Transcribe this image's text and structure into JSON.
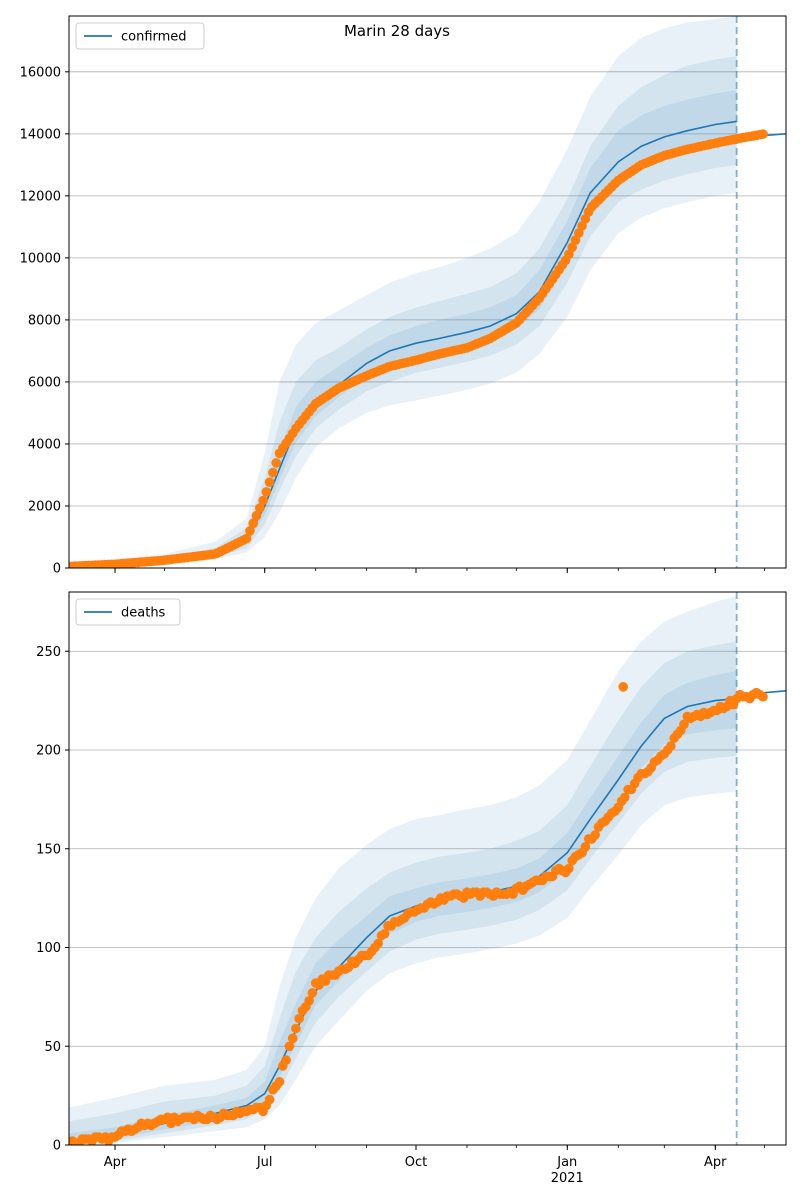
{
  "figure": {
    "title": "Marin 28 days"
  },
  "colors": {
    "model": "#1f77b4",
    "observed": "#ff7f0e",
    "grid": "#b0b0b0",
    "band": "#1f77b4"
  },
  "x_axis": {
    "ticks": [
      {
        "date": "2020-04-01",
        "label": "Apr"
      },
      {
        "date": "2020-07-01",
        "label": "Jul"
      },
      {
        "date": "2020-10-01",
        "label": "Oct"
      },
      {
        "date": "2021-01-01",
        "label": "Jan",
        "sublabel": "2021"
      },
      {
        "date": "2021-04-01",
        "label": "Apr"
      }
    ]
  },
  "chart_data": [
    {
      "type": "line",
      "legend": "confirmed",
      "legend_position": "top-left",
      "grid": "horizontal",
      "xlim": [
        "2020-03-04",
        "2021-05-14"
      ],
      "ylim": [
        0,
        17800
      ],
      "yticks": [
        0,
        2000,
        4000,
        6000,
        8000,
        10000,
        12000,
        14000,
        16000
      ],
      "forecast_line_date": "2021-04-14",
      "series": [
        {
          "name": "confirmed",
          "kind": "model",
          "x": [
            "2020-03-04",
            "2020-04-01",
            "2020-05-01",
            "2020-06-01",
            "2020-06-20",
            "2020-07-01",
            "2020-07-10",
            "2020-07-20",
            "2020-08-01",
            "2020-08-15",
            "2020-09-01",
            "2020-09-15",
            "2020-10-01",
            "2020-10-15",
            "2020-11-01",
            "2020-11-15",
            "2020-12-01",
            "2020-12-15",
            "2021-01-01",
            "2021-01-15",
            "2021-02-01",
            "2021-02-15",
            "2021-03-01",
            "2021-03-15",
            "2021-04-01",
            "2021-04-14"
          ],
          "y": [
            30,
            100,
            200,
            450,
            900,
            2000,
            3200,
            4500,
            5350,
            5900,
            6600,
            7000,
            7250,
            7400,
            7600,
            7800,
            8200,
            8900,
            10500,
            12100,
            13100,
            13600,
            13900,
            14100,
            14300,
            14400
          ]
        },
        {
          "name": "confirmed observed",
          "kind": "observed",
          "x": [
            "2020-03-04",
            "2020-04-01",
            "2020-05-01",
            "2020-06-01",
            "2020-06-20",
            "2020-07-01",
            "2020-07-10",
            "2020-07-20",
            "2020-08-01",
            "2020-08-15",
            "2020-09-01",
            "2020-09-15",
            "2020-10-01",
            "2020-10-15",
            "2020-11-01",
            "2020-11-15",
            "2020-12-01",
            "2020-12-15",
            "2021-01-01",
            "2021-01-15",
            "2021-02-01",
            "2021-02-15",
            "2021-03-01",
            "2021-03-15",
            "2021-04-01",
            "2021-04-15",
            "2021-05-01"
          ],
          "y": [
            50,
            120,
            250,
            450,
            950,
            2300,
            3700,
            4500,
            5300,
            5800,
            6200,
            6500,
            6700,
            6900,
            7100,
            7400,
            7900,
            8700,
            10000,
            11600,
            12500,
            13000,
            13300,
            13500,
            13700,
            13850,
            14000
          ]
        },
        {
          "name": "confirmed projection",
          "kind": "projection",
          "x": [
            "2021-04-14",
            "2021-05-01",
            "2021-05-14"
          ],
          "y": [
            13850,
            13950,
            14000
          ]
        }
      ],
      "bands": [
        {
          "level": "outer",
          "x": [
            "2020-03-04",
            "2020-04-01",
            "2020-05-01",
            "2020-06-01",
            "2020-06-20",
            "2020-07-01",
            "2020-07-10",
            "2020-07-20",
            "2020-08-01",
            "2020-08-15",
            "2020-09-01",
            "2020-09-15",
            "2020-10-01",
            "2020-10-15",
            "2020-11-01",
            "2020-11-15",
            "2020-12-01",
            "2020-12-15",
            "2021-01-01",
            "2021-01-15",
            "2021-02-01",
            "2021-02-15",
            "2021-03-01",
            "2021-03-15",
            "2021-04-01",
            "2021-04-14"
          ],
          "low": [
            0,
            50,
            120,
            280,
            500,
            1000,
            1800,
            2900,
            3900,
            4500,
            5000,
            5250,
            5400,
            5550,
            5750,
            5950,
            6300,
            6900,
            8100,
            9600,
            10800,
            11300,
            11600,
            11800,
            12000,
            12100
          ],
          "high": [
            200,
            300,
            450,
            850,
            1600,
            3700,
            6000,
            7200,
            7900,
            8300,
            8800,
            9200,
            9500,
            9700,
            10000,
            10300,
            10800,
            11800,
            13500,
            15200,
            16500,
            17100,
            17400,
            17600,
            17700,
            17800
          ]
        },
        {
          "level": "middle",
          "x": [
            "2020-03-04",
            "2020-04-01",
            "2020-05-01",
            "2020-06-01",
            "2020-06-20",
            "2020-07-01",
            "2020-07-10",
            "2020-07-20",
            "2020-08-01",
            "2020-08-15",
            "2020-09-01",
            "2020-09-15",
            "2020-10-01",
            "2020-10-15",
            "2020-11-01",
            "2020-11-15",
            "2020-12-01",
            "2020-12-15",
            "2021-01-01",
            "2021-01-15",
            "2021-02-01",
            "2021-02-15",
            "2021-03-01",
            "2021-03-15",
            "2021-04-01",
            "2021-04-14"
          ],
          "low": [
            10,
            70,
            150,
            350,
            650,
            1400,
            2500,
            3600,
            4500,
            5100,
            5700,
            6000,
            6300,
            6450,
            6650,
            6850,
            7200,
            7800,
            9200,
            10700,
            11800,
            12200,
            12500,
            12700,
            12900,
            13000
          ],
          "high": [
            100,
            200,
            330,
            650,
            1300,
            2900,
            4700,
            6000,
            6700,
            7100,
            7700,
            8100,
            8400,
            8600,
            8850,
            9050,
            9500,
            10300,
            11900,
            13600,
            14900,
            15500,
            15900,
            16200,
            16400,
            16500
          ]
        },
        {
          "level": "inner",
          "x": [
            "2020-03-04",
            "2020-04-01",
            "2020-05-01",
            "2020-06-01",
            "2020-06-20",
            "2020-07-01",
            "2020-07-10",
            "2020-07-20",
            "2020-08-01",
            "2020-08-15",
            "2020-09-01",
            "2020-09-15",
            "2020-10-01",
            "2020-10-15",
            "2020-11-01",
            "2020-11-15",
            "2020-12-01",
            "2020-12-15",
            "2021-01-01",
            "2021-01-15",
            "2021-02-01",
            "2021-02-15",
            "2021-03-01",
            "2021-03-15",
            "2021-04-01",
            "2021-04-14"
          ],
          "low": [
            20,
            85,
            175,
            400,
            780,
            1700,
            2850,
            4050,
            4900,
            5500,
            6200,
            6550,
            6800,
            6950,
            7150,
            7350,
            7700,
            8350,
            9850,
            11400,
            12400,
            12900,
            13200,
            13400,
            13600,
            13650
          ],
          "high": [
            60,
            150,
            270,
            550,
            1100,
            2400,
            3800,
            5200,
            6000,
            6500,
            7100,
            7500,
            7800,
            8000,
            8200,
            8400,
            8800,
            9600,
            11200,
            12900,
            14100,
            14600,
            14900,
            15100,
            15300,
            15400
          ]
        }
      ]
    },
    {
      "type": "line",
      "legend": "deaths",
      "legend_position": "top-left",
      "grid": "horizontal",
      "xlim": [
        "2020-03-04",
        "2021-05-14"
      ],
      "ylim": [
        0,
        280
      ],
      "yticks": [
        0,
        50,
        100,
        150,
        200,
        250
      ],
      "forecast_line_date": "2021-04-14",
      "series": [
        {
          "name": "deaths",
          "kind": "model",
          "x": [
            "2020-03-04",
            "2020-04-01",
            "2020-05-01",
            "2020-06-01",
            "2020-06-20",
            "2020-07-01",
            "2020-07-10",
            "2020-07-20",
            "2020-08-01",
            "2020-08-15",
            "2020-09-01",
            "2020-09-15",
            "2020-10-01",
            "2020-10-15",
            "2020-11-01",
            "2020-11-15",
            "2020-12-01",
            "2020-12-15",
            "2021-01-01",
            "2021-01-15",
            "2021-02-01",
            "2021-02-15",
            "2021-03-01",
            "2021-03-15",
            "2021-04-01",
            "2021-04-14"
          ],
          "y": [
            0,
            5,
            11,
            16,
            20,
            26,
            40,
            58,
            78,
            90,
            105,
            116,
            121,
            124,
            126,
            128,
            131,
            136,
            148,
            165,
            185,
            202,
            216,
            222,
            225,
            226
          ]
        },
        {
          "name": "deaths observed",
          "kind": "observed",
          "x": [
            "2020-03-04",
            "2020-04-01",
            "2020-04-15",
            "2020-05-01",
            "2020-05-15",
            "2020-06-01",
            "2020-06-15",
            "2020-07-01",
            "2020-07-10",
            "2020-07-20",
            "2020-08-01",
            "2020-08-15",
            "2020-09-01",
            "2020-09-15",
            "2020-10-01",
            "2020-10-15",
            "2020-11-01",
            "2020-11-15",
            "2020-12-01",
            "2020-12-15",
            "2021-01-01",
            "2021-01-15",
            "2021-02-01",
            "2021-02-15",
            "2021-03-01",
            "2021-03-15",
            "2021-04-01",
            "2021-04-15",
            "2021-05-01"
          ],
          "y": [
            1,
            4,
            10,
            12,
            14,
            14,
            17,
            19,
            33,
            60,
            81,
            88,
            96,
            111,
            119,
            124,
            127,
            127,
            129,
            135,
            140,
            155,
            172,
            188,
            197,
            217,
            220,
            226,
            228
          ]
        },
        {
          "name": "deaths outlier",
          "kind": "observed",
          "x": [
            "2021-02-04"
          ],
          "y": [
            232
          ]
        },
        {
          "name": "deaths projection",
          "kind": "projection",
          "x": [
            "2021-04-14",
            "2021-05-01",
            "2021-05-14"
          ],
          "y": [
            226,
            229,
            230
          ]
        }
      ],
      "bands": [
        {
          "level": "outer",
          "x": [
            "2020-03-04",
            "2020-04-01",
            "2020-05-01",
            "2020-06-01",
            "2020-06-20",
            "2020-07-01",
            "2020-07-10",
            "2020-07-20",
            "2020-08-01",
            "2020-08-15",
            "2020-09-01",
            "2020-09-15",
            "2020-10-01",
            "2020-10-15",
            "2020-11-01",
            "2020-11-15",
            "2020-12-01",
            "2020-12-15",
            "2021-01-01",
            "2021-01-15",
            "2021-02-01",
            "2021-02-15",
            "2021-03-01",
            "2021-03-15",
            "2021-04-01",
            "2021-04-14"
          ],
          "low": [
            0,
            1,
            4,
            7,
            9,
            13,
            20,
            33,
            50,
            63,
            78,
            87,
            92,
            95,
            97,
            99,
            102,
            106,
            115,
            130,
            147,
            162,
            172,
            176,
            178,
            179
          ],
          "high": [
            19,
            24,
            30,
            33,
            38,
            50,
            80,
            105,
            125,
            140,
            152,
            160,
            165,
            167,
            170,
            172,
            176,
            182,
            195,
            215,
            240,
            255,
            265,
            270,
            275,
            278
          ]
        },
        {
          "level": "middle",
          "x": [
            "2020-03-04",
            "2020-04-01",
            "2020-05-01",
            "2020-06-01",
            "2020-06-20",
            "2020-07-01",
            "2020-07-10",
            "2020-07-20",
            "2020-08-01",
            "2020-08-15",
            "2020-09-01",
            "2020-09-15",
            "2020-10-01",
            "2020-10-15",
            "2020-11-01",
            "2020-11-15",
            "2020-12-01",
            "2020-12-15",
            "2021-01-01",
            "2021-01-15",
            "2021-02-01",
            "2021-02-15",
            "2021-03-01",
            "2021-03-15",
            "2021-04-01",
            "2021-04-14"
          ],
          "low": [
            0,
            2,
            6,
            10,
            13,
            18,
            28,
            44,
            62,
            75,
            88,
            98,
            104,
            107,
            109,
            111,
            114,
            119,
            129,
            145,
            163,
            178,
            189,
            194,
            196,
            197
          ],
          "high": [
            12,
            16,
            22,
            25,
            30,
            40,
            64,
            88,
            105,
            118,
            130,
            138,
            143,
            146,
            148,
            150,
            154,
            159,
            172,
            192,
            215,
            232,
            244,
            250,
            253,
            255
          ]
        },
        {
          "level": "inner",
          "x": [
            "2020-03-04",
            "2020-04-01",
            "2020-05-01",
            "2020-06-01",
            "2020-06-20",
            "2020-07-01",
            "2020-07-10",
            "2020-07-20",
            "2020-08-01",
            "2020-08-15",
            "2020-09-01",
            "2020-09-15",
            "2020-10-01",
            "2020-10-15",
            "2020-11-01",
            "2020-11-15",
            "2020-12-01",
            "2020-12-15",
            "2021-01-01",
            "2021-01-15",
            "2021-02-01",
            "2021-02-15",
            "2021-03-01",
            "2021-03-15",
            "2021-04-01",
            "2021-04-14"
          ],
          "low": [
            0,
            3,
            8,
            12,
            16,
            22,
            34,
            51,
            71,
            83,
            97,
            107,
            113,
            116,
            118,
            120,
            123,
            128,
            139,
            156,
            175,
            191,
            203,
            208,
            210,
            211
          ],
          "high": [
            6,
            9,
            15,
            20,
            24,
            32,
            52,
            72,
            92,
            104,
            116,
            126,
            130,
            133,
            135,
            137,
            140,
            145,
            158,
            176,
            197,
            214,
            228,
            234,
            238,
            240
          ]
        }
      ]
    }
  ]
}
